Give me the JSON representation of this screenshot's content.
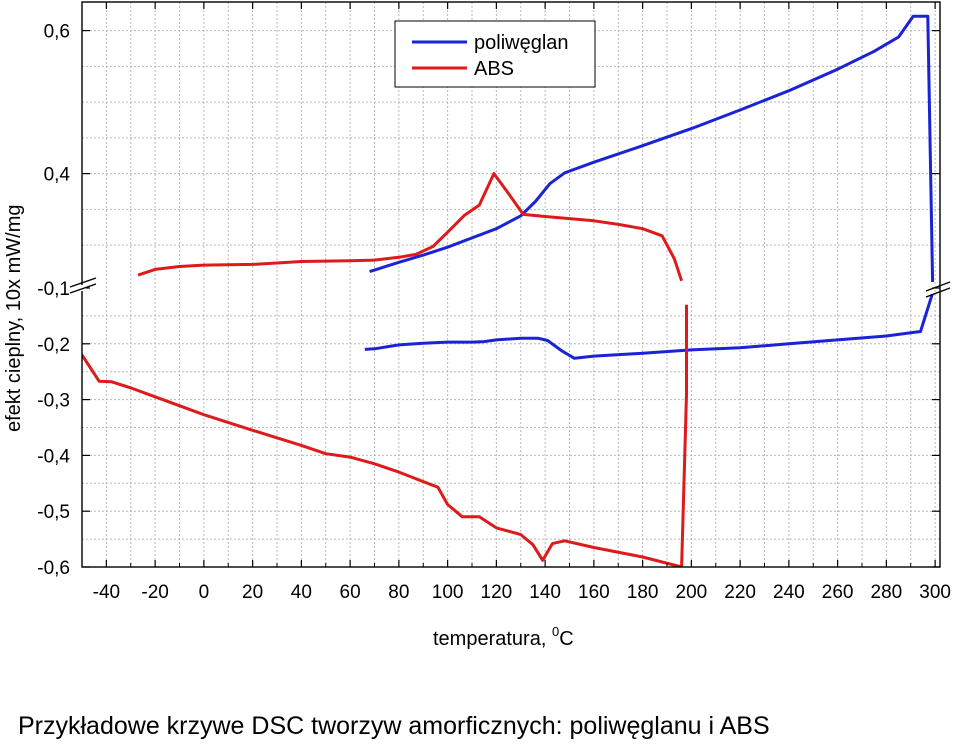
{
  "colors": {
    "polyc": "#1a23d6",
    "abs": "#de1a1a",
    "grid": "#b8b8b8",
    "axis": "#000000"
  },
  "caption": "Przykładowe krzywe DSC tworzyw amorficznych: poliwęglanu i ABS",
  "chart_data": {
    "type": "line",
    "title": "",
    "xlabel": "temperatura,",
    "xlabel_sup": "0",
    "xlabel_unit": "C",
    "ylabel": "efekt cieplny, 10x mW/mg",
    "xlim": [
      -50,
      302
    ],
    "x_ticks": [
      -40,
      -20,
      0,
      20,
      40,
      60,
      80,
      100,
      120,
      140,
      160,
      180,
      200,
      220,
      240,
      260,
      280,
      300
    ],
    "x_tick_labels": [
      "-40",
      "-20",
      "0",
      "20",
      "40",
      "60",
      "80",
      "100",
      "120",
      "140",
      "160",
      "180",
      "200",
      "220",
      "240",
      "260",
      "280",
      "300"
    ],
    "axis_break": "between -0,1 and 0,4",
    "upper_panel": {
      "ylim": [
        0.24,
        0.64
      ],
      "ticks": [
        0.6,
        0.4
      ],
      "tick_labels": [
        "0,6",
        "0,4"
      ]
    },
    "lower_panel": {
      "ylim": [
        -0.6,
        -0.1
      ],
      "ticks": [
        -0.1,
        -0.2,
        -0.3,
        -0.4,
        -0.5,
        -0.6
      ],
      "tick_labels": [
        "-0,1",
        "-0,2",
        "-0,3",
        "-0,4",
        "-0,5",
        "-0,6"
      ]
    },
    "legend": [
      {
        "name": "poliwęglan",
        "color": "#1a23d6"
      },
      {
        "name": "ABS",
        "color": "#de1a1a"
      }
    ],
    "series": [
      {
        "name": "poliwęglan",
        "color": "#1a23d6",
        "upper": [
          [
            68,
            0.263
          ],
          [
            80,
            0.276
          ],
          [
            90,
            0.286
          ],
          [
            100,
            0.297
          ],
          [
            110,
            0.31
          ],
          [
            120,
            0.323
          ],
          [
            130,
            0.341
          ],
          [
            136,
            0.361
          ],
          [
            142,
            0.386
          ],
          [
            148,
            0.401
          ],
          [
            160,
            0.416
          ],
          [
            180,
            0.439
          ],
          [
            200,
            0.463
          ],
          [
            220,
            0.489
          ],
          [
            240,
            0.516
          ],
          [
            260,
            0.546
          ],
          [
            275,
            0.571
          ],
          [
            285,
            0.591
          ],
          [
            291,
            0.62
          ],
          [
            297,
            0.62
          ],
          [
            299,
            0.24
          ]
        ],
        "lower": [
          [
            66,
            -0.21
          ],
          [
            70,
            -0.209
          ],
          [
            80,
            -0.202
          ],
          [
            90,
            -0.199
          ],
          [
            100,
            -0.197
          ],
          [
            110,
            -0.197
          ],
          [
            115,
            -0.196
          ],
          [
            120,
            -0.193
          ],
          [
            130,
            -0.19
          ],
          [
            137,
            -0.19
          ],
          [
            141,
            -0.194
          ],
          [
            147,
            -0.213
          ],
          [
            152,
            -0.226
          ],
          [
            160,
            -0.222
          ],
          [
            180,
            -0.217
          ],
          [
            200,
            -0.211
          ],
          [
            220,
            -0.207
          ],
          [
            240,
            -0.2
          ],
          [
            260,
            -0.193
          ],
          [
            280,
            -0.186
          ],
          [
            294,
            -0.178
          ],
          [
            300,
            -0.095
          ]
        ]
      },
      {
        "name": "ABS",
        "color": "#de1a1a",
        "upper": [
          [
            -27,
            0.258
          ],
          [
            -20,
            0.266
          ],
          [
            -10,
            0.27
          ],
          [
            0,
            0.272
          ],
          [
            20,
            0.273
          ],
          [
            30,
            0.275
          ],
          [
            40,
            0.277
          ],
          [
            60,
            0.278
          ],
          [
            70,
            0.279
          ],
          [
            80,
            0.283
          ],
          [
            87,
            0.287
          ],
          [
            94,
            0.298
          ],
          [
            100,
            0.318
          ],
          [
            107,
            0.342
          ],
          [
            113,
            0.356
          ],
          [
            119,
            0.4
          ],
          [
            125,
            0.372
          ],
          [
            131,
            0.343
          ],
          [
            140,
            0.34
          ],
          [
            150,
            0.337
          ],
          [
            160,
            0.334
          ],
          [
            170,
            0.329
          ],
          [
            180,
            0.323
          ],
          [
            188,
            0.313
          ],
          [
            193,
            0.281
          ],
          [
            196,
            0.25
          ]
        ],
        "lower": [
          [
            -50,
            -0.22
          ],
          [
            -43,
            -0.267
          ],
          [
            -38,
            -0.268
          ],
          [
            -30,
            -0.279
          ],
          [
            -20,
            -0.295
          ],
          [
            0,
            -0.327
          ],
          [
            20,
            -0.355
          ],
          [
            40,
            -0.382
          ],
          [
            50,
            -0.397
          ],
          [
            60,
            -0.403
          ],
          [
            70,
            -0.415
          ],
          [
            80,
            -0.43
          ],
          [
            90,
            -0.447
          ],
          [
            96,
            -0.457
          ],
          [
            100,
            -0.488
          ],
          [
            106,
            -0.51
          ],
          [
            113,
            -0.51
          ],
          [
            120,
            -0.53
          ],
          [
            130,
            -0.542
          ],
          [
            135,
            -0.56
          ],
          [
            139,
            -0.588
          ],
          [
            143,
            -0.558
          ],
          [
            148,
            -0.553
          ],
          [
            160,
            -0.565
          ],
          [
            180,
            -0.582
          ],
          [
            196,
            -0.6
          ],
          [
            198,
            -0.29
          ],
          [
            198,
            -0.13
          ]
        ]
      }
    ]
  }
}
